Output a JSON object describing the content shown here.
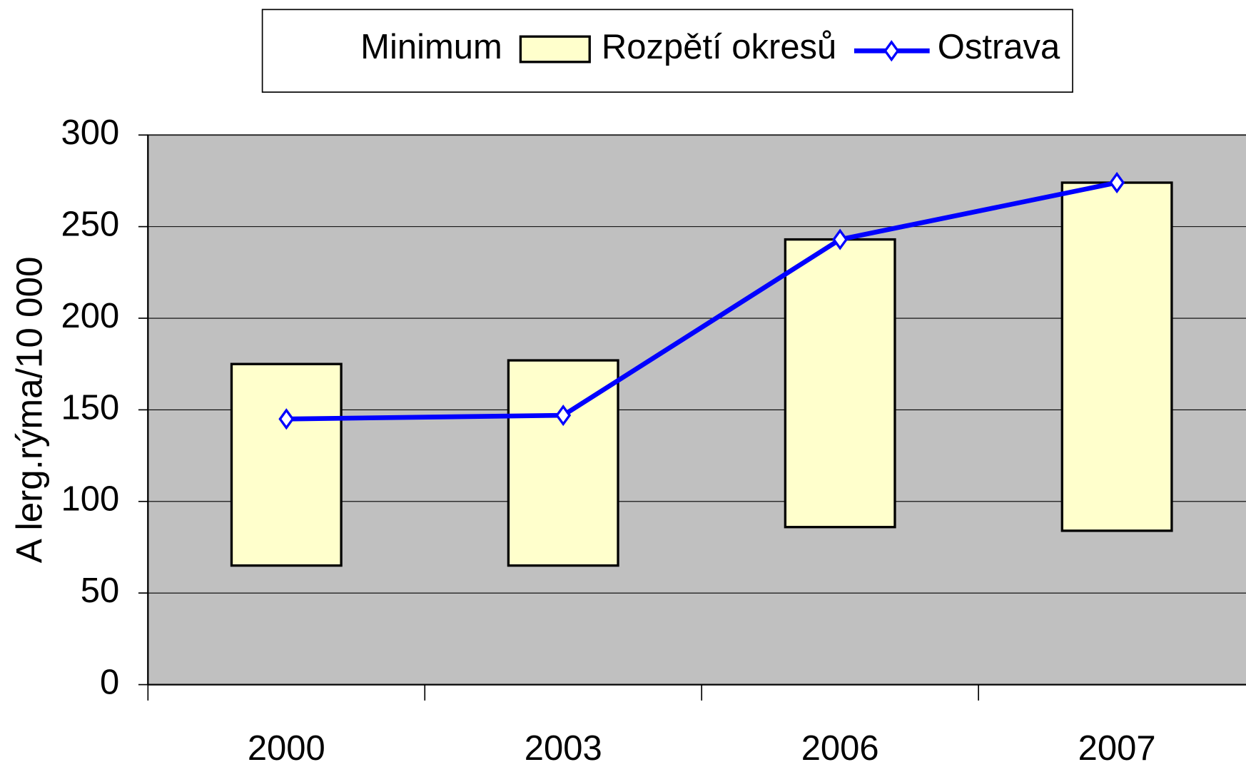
{
  "chart_data": {
    "type": "floating-bar-line",
    "y_axis_label": "A lerg.rýma/10 000",
    "categories": [
      "2000",
      "2003",
      "2006",
      "2007"
    ],
    "series": [
      {
        "name": "Minimum",
        "color": "none",
        "values": [
          65,
          65,
          86,
          84
        ]
      },
      {
        "name": "Rozpětí okresů",
        "color": "#ffffcc",
        "values": [
          110,
          112,
          157,
          190
        ]
      },
      {
        "name": "Ostrava",
        "color": "#0000ff",
        "values": [
          145,
          147,
          243,
          274
        ]
      }
    ],
    "ylim": [
      0,
      300
    ],
    "yticks": [
      0,
      50,
      100,
      150,
      200,
      250,
      300
    ],
    "grid": true
  }
}
